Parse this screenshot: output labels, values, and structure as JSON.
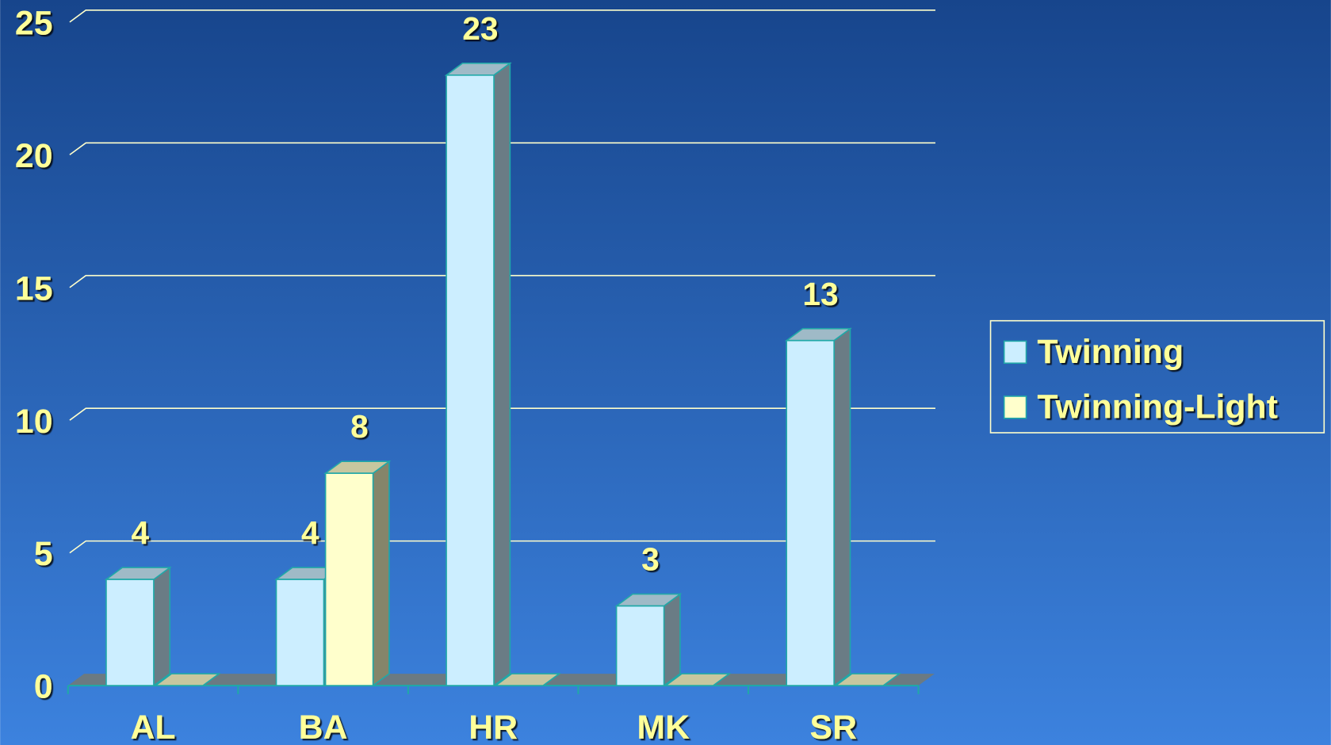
{
  "chart_data": {
    "type": "bar3d",
    "categories": [
      "AL",
      "BA",
      "HR",
      "MK",
      "SR"
    ],
    "series": [
      {
        "name": "Twinning",
        "color": "#cceeff",
        "values": [
          4,
          4,
          23,
          3,
          13
        ]
      },
      {
        "name": "Twinning-Light",
        "color": "#ffffcc",
        "values": [
          0,
          8,
          0,
          0,
          0
        ]
      }
    ],
    "ylim": [
      0,
      25
    ],
    "yticks": [
      0,
      5,
      10,
      15,
      20,
      25
    ],
    "grid": true,
    "legend": "right"
  }
}
